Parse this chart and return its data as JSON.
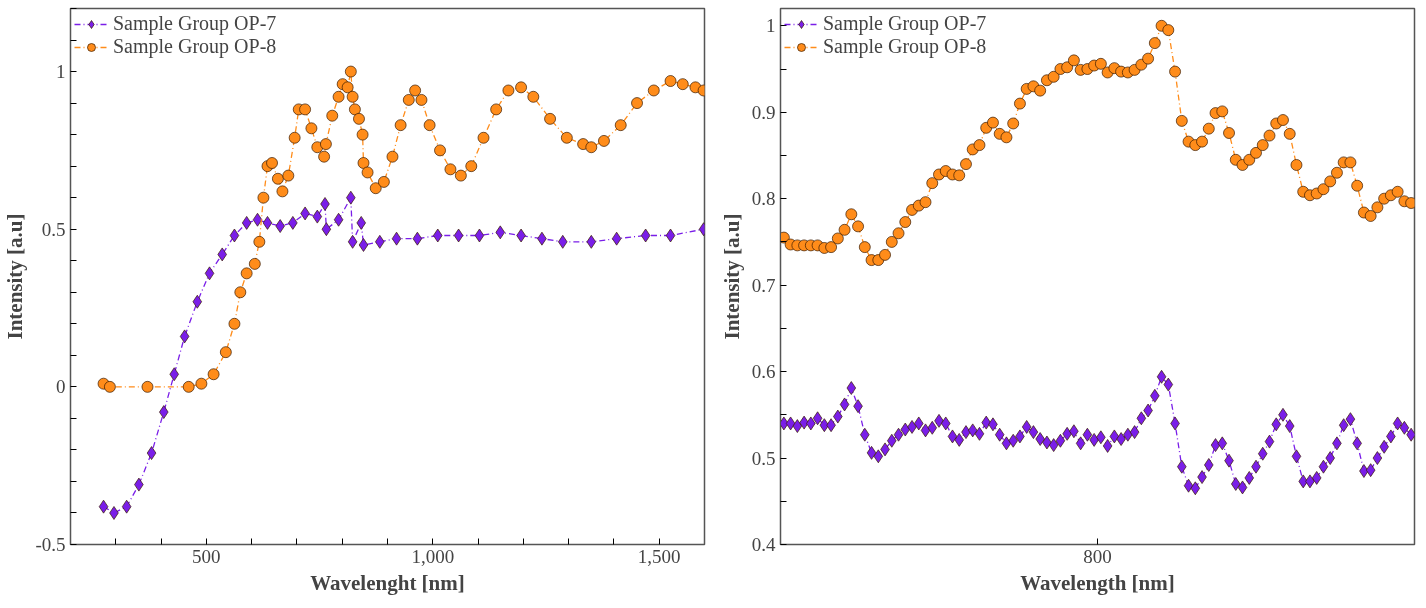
{
  "chart_data": [
    {
      "type": "line",
      "xlabel": "Wavelenght [nm]",
      "ylabel": "Intensity [a.u]",
      "xlim": [
        200,
        1600
      ],
      "ylim": [
        -0.5,
        1.2
      ],
      "xticks": [
        {
          "value": 300,
          "label": null
        },
        {
          "value": 400,
          "label": null
        },
        500,
        {
          "value": 600,
          "label": null
        },
        {
          "value": 700,
          "label": null
        },
        {
          "value": 800,
          "label": null
        },
        {
          "value": 900,
          "label": null
        },
        {
          "value": 1000,
          "label": "1,000"
        },
        {
          "value": 1100,
          "label": null
        },
        {
          "value": 1200,
          "label": null
        },
        {
          "value": 1300,
          "label": null
        },
        {
          "value": 1400,
          "label": null
        },
        {
          "value": 1500,
          "label": "1,500"
        }
      ],
      "yticks": [
        -0.5,
        {
          "value": -0.4,
          "label": null
        },
        {
          "value": -0.3,
          "label": null
        },
        {
          "value": -0.2,
          "label": null
        },
        {
          "value": -0.1,
          "label": null
        },
        0,
        {
          "value": 0.1,
          "label": null
        },
        {
          "value": 0.2,
          "label": null
        },
        {
          "value": 0.3,
          "label": null
        },
        {
          "value": 0.4,
          "label": null
        },
        0.5,
        {
          "value": 0.6,
          "label": null
        },
        {
          "value": 0.7,
          "label": null
        },
        {
          "value": 0.8,
          "label": null
        },
        {
          "value": 0.9,
          "label": null
        },
        1,
        {
          "value": 1.1,
          "label": null
        },
        {
          "value": 1.2,
          "label": null
        }
      ],
      "grid": false,
      "legend": "top left",
      "line_style": "dashed",
      "series": [
        {
          "name": "Sample Group OP-7",
          "color": "#7a1ee8",
          "marker": "diamond",
          "x": [
            273,
            296,
            324,
            351,
            379,
            406,
            429,
            452,
            480,
            507,
            535,
            562,
            589,
            613,
            635,
            663,
            691,
            718,
            745,
            762,
            765,
            792,
            819,
            823,
            842,
            847,
            883,
            920,
            966,
            1011,
            1057,
            1103,
            1149,
            1195,
            1241,
            1287,
            1350,
            1406,
            1470,
            1525,
            1598
          ],
          "values": [
            -0.38,
            -0.4,
            -0.38,
            -0.31,
            -0.21,
            -0.08,
            0.04,
            0.16,
            0.27,
            0.36,
            0.42,
            0.48,
            0.52,
            0.53,
            0.52,
            0.51,
            0.52,
            0.55,
            0.54,
            0.58,
            0.5,
            0.53,
            0.6,
            0.46,
            0.52,
            0.45,
            0.46,
            0.47,
            0.47,
            0.48,
            0.48,
            0.48,
            0.49,
            0.48,
            0.47,
            0.46,
            0.46,
            0.47,
            0.48,
            0.48,
            0.5
          ]
        },
        {
          "name": "Sample Group OP-8",
          "color": "#ff8c1a",
          "marker": "circle",
          "x": [
            273,
            287,
            370,
            461,
            489,
            516,
            543,
            562,
            575,
            589,
            607,
            617,
            626,
            635,
            645,
            658,
            668,
            681,
            695,
            704,
            718,
            732,
            745,
            760,
            764,
            778,
            792,
            801,
            812,
            819,
            823,
            828,
            837,
            845,
            847,
            856,
            874,
            892,
            911,
            929,
            947,
            961,
            975,
            993,
            1016,
            1039,
            1062,
            1085,
            1112,
            1140,
            1167,
            1195,
            1222,
            1259,
            1296,
            1332,
            1350,
            1378,
            1415,
            1451,
            1488,
            1525,
            1552,
            1580,
            1598
          ],
          "values": [
            0.01,
            0.0,
            0.0,
            0.0,
            0.01,
            0.04,
            0.11,
            0.2,
            0.3,
            0.36,
            0.39,
            0.46,
            0.6,
            0.7,
            0.71,
            0.66,
            0.62,
            0.67,
            0.79,
            0.88,
            0.88,
            0.82,
            0.76,
            0.73,
            0.77,
            0.86,
            0.92,
            0.96,
            0.95,
            1.0,
            0.92,
            0.88,
            0.85,
            0.8,
            0.71,
            0.68,
            0.63,
            0.65,
            0.73,
            0.83,
            0.91,
            0.94,
            0.91,
            0.83,
            0.75,
            0.69,
            0.67,
            0.7,
            0.79,
            0.88,
            0.94,
            0.95,
            0.92,
            0.85,
            0.79,
            0.77,
            0.76,
            0.78,
            0.83,
            0.9,
            0.94,
            0.97,
            0.96,
            0.95,
            0.94
          ]
        }
      ]
    },
    {
      "type": "line",
      "xlabel": "Wavelength [nm]",
      "ylabel": "Intensity [a.u]",
      "ylim": [
        0.4,
        1.02
      ],
      "annotations": [
        "800"
      ],
      "categories": [
        null,
        null,
        null,
        null,
        null,
        null,
        null,
        null,
        null,
        null,
        null,
        null,
        null,
        null,
        null,
        null,
        null,
        null,
        null,
        null,
        null,
        null,
        null,
        null,
        null,
        null,
        null,
        null,
        null,
        null,
        null,
        null,
        null,
        null,
        null,
        null,
        null,
        null,
        null,
        null,
        null,
        null,
        null,
        null,
        null,
        null,
        null,
        null,
        null,
        null,
        null,
        null,
        null,
        null,
        null,
        null,
        null,
        null,
        null,
        null,
        null,
        null,
        null,
        null,
        null,
        null,
        null,
        null,
        null,
        null,
        null,
        null,
        null,
        null,
        null,
        null,
        null,
        null,
        null,
        null,
        null,
        null,
        null,
        null,
        null,
        null,
        null,
        null,
        null,
        null,
        null,
        null,
        null,
        null
      ],
      "yticks": [
        0.4,
        {
          "value": 0.45,
          "label": null
        },
        0.5,
        {
          "value": 0.55,
          "label": null
        },
        0.6,
        {
          "value": 0.65,
          "label": null
        },
        0.7,
        {
          "value": 0.75,
          "label": null
        },
        0.8,
        {
          "value": 0.85,
          "label": null
        },
        0.9,
        {
          "value": 0.95,
          "label": null
        },
        1
      ],
      "grid": false,
      "legend": "top left",
      "line_style": "dashed",
      "series": [
        {
          "name": "Sample Group OP-7",
          "color": "#7a1ee8",
          "marker": "diamond",
          "values": [
            0.54,
            0.54,
            0.537,
            0.541,
            0.54,
            0.546,
            0.538,
            0.538,
            0.548,
            0.562,
            0.581,
            0.56,
            0.527,
            0.506,
            0.502,
            0.51,
            0.52,
            0.527,
            0.533,
            0.536,
            0.54,
            0.532,
            0.535,
            0.543,
            0.54,
            0.525,
            0.521,
            0.53,
            0.532,
            0.528,
            0.541,
            0.539,
            0.527,
            0.517,
            0.52,
            0.525,
            0.536,
            0.53,
            0.522,
            0.518,
            0.515,
            0.52,
            0.528,
            0.531,
            0.517,
            0.527,
            0.521,
            0.524,
            0.514,
            0.525,
            0.522,
            0.527,
            0.53,
            0.546,
            0.555,
            0.572,
            0.594,
            0.585,
            0.54,
            0.49,
            0.468,
            0.465,
            0.478,
            0.492,
            0.515,
            0.517,
            0.497,
            0.47,
            0.466,
            0.477,
            0.49,
            0.505,
            0.519,
            0.539,
            0.55,
            0.537,
            0.502,
            0.473,
            0.473,
            0.477,
            0.49,
            0.5,
            0.517,
            0.538,
            0.545,
            0.517,
            0.485,
            0.486,
            0.5,
            0.513,
            0.525,
            0.54,
            0.535,
            0.527
          ]
        },
        {
          "name": "Sample Group OP-8",
          "color": "#ff8c1a",
          "marker": "circle",
          "values": [
            0.755,
            0.747,
            0.746,
            0.746,
            0.746,
            0.746,
            0.743,
            0.744,
            0.754,
            0.764,
            0.782,
            0.768,
            0.744,
            0.729,
            0.729,
            0.735,
            0.75,
            0.76,
            0.773,
            0.787,
            0.792,
            0.796,
            0.818,
            0.828,
            0.832,
            0.828,
            0.827,
            0.84,
            0.857,
            0.862,
            0.882,
            0.888,
            0.875,
            0.871,
            0.887,
            0.91,
            0.927,
            0.93,
            0.925,
            0.937,
            0.941,
            0.95,
            0.952,
            0.96,
            0.949,
            0.95,
            0.954,
            0.956,
            0.946,
            0.951,
            0.947,
            0.946,
            0.949,
            0.955,
            0.962,
            0.98,
            1.0,
            0.995,
            0.947,
            0.89,
            0.866,
            0.862,
            0.866,
            0.881,
            0.899,
            0.901,
            0.876,
            0.845,
            0.839,
            0.845,
            0.853,
            0.862,
            0.873,
            0.887,
            0.891,
            0.875,
            0.839,
            0.808,
            0.804,
            0.806,
            0.811,
            0.82,
            0.83,
            0.842,
            0.842,
            0.815,
            0.784,
            0.78,
            0.79,
            0.8,
            0.804,
            0.808,
            0.797,
            0.795
          ]
        }
      ]
    }
  ]
}
